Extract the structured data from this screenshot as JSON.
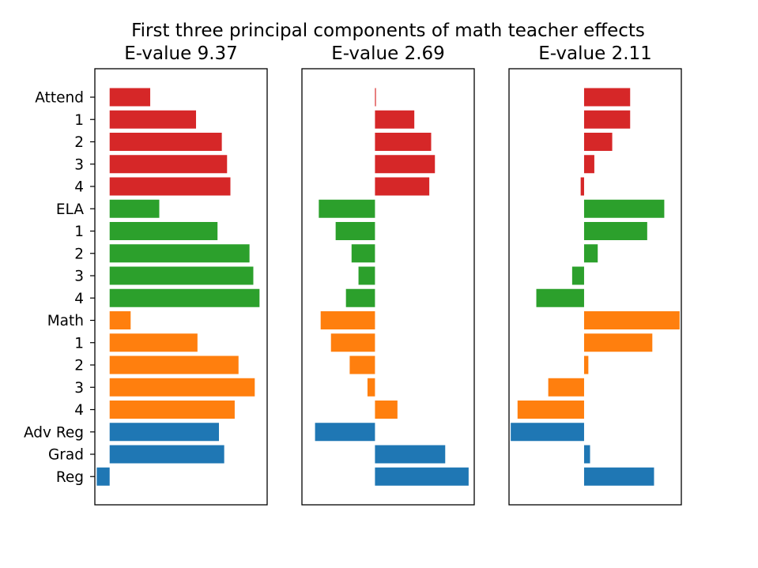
{
  "chart_data": {
    "type": "bar",
    "orientation": "horizontal",
    "title": "First three principal components of math teacher effects",
    "categories": [
      "Attend",
      "1",
      "2",
      "3",
      "4",
      "ELA",
      "1",
      "2",
      "3",
      "4",
      "Math",
      "1",
      "2",
      "3",
      "4",
      "Adv Reg",
      "Grad",
      "Reg"
    ],
    "bar_colors": [
      "#d62728",
      "#d62728",
      "#d62728",
      "#d62728",
      "#d62728",
      "#2ca02c",
      "#2ca02c",
      "#2ca02c",
      "#2ca02c",
      "#2ca02c",
      "#ff7f0e",
      "#ff7f0e",
      "#ff7f0e",
      "#ff7f0e",
      "#ff7f0e",
      "#1f77b4",
      "#1f77b4",
      "#1f77b4"
    ],
    "grid": false,
    "x_ticks_shown": false,
    "panels": [
      {
        "title": "E-value 9.37",
        "xlim": [
          -0.031,
          0.33
        ],
        "values": [
          0.085,
          0.181,
          0.235,
          0.246,
          0.253,
          0.104,
          0.226,
          0.293,
          0.301,
          0.314,
          0.044,
          0.184,
          0.27,
          0.304,
          0.262,
          0.229,
          0.24,
          -0.027
        ]
      },
      {
        "title": "E-value 2.69",
        "xlim": [
          -0.39,
          0.53
        ],
        "values": [
          0.005,
          0.21,
          0.3,
          0.32,
          0.29,
          -0.3,
          -0.21,
          -0.125,
          -0.088,
          -0.155,
          -0.29,
          -0.235,
          -0.135,
          -0.04,
          0.12,
          -0.32,
          0.375,
          0.5
        ]
      },
      {
        "title": "E-value 2.11",
        "xlim": [
          -0.44,
          0.57
        ],
        "values": [
          0.27,
          0.27,
          0.165,
          0.06,
          -0.02,
          0.47,
          0.37,
          0.08,
          -0.07,
          -0.28,
          0.56,
          0.4,
          0.025,
          -0.21,
          -0.39,
          -0.43,
          0.035,
          0.41
        ]
      }
    ]
  }
}
